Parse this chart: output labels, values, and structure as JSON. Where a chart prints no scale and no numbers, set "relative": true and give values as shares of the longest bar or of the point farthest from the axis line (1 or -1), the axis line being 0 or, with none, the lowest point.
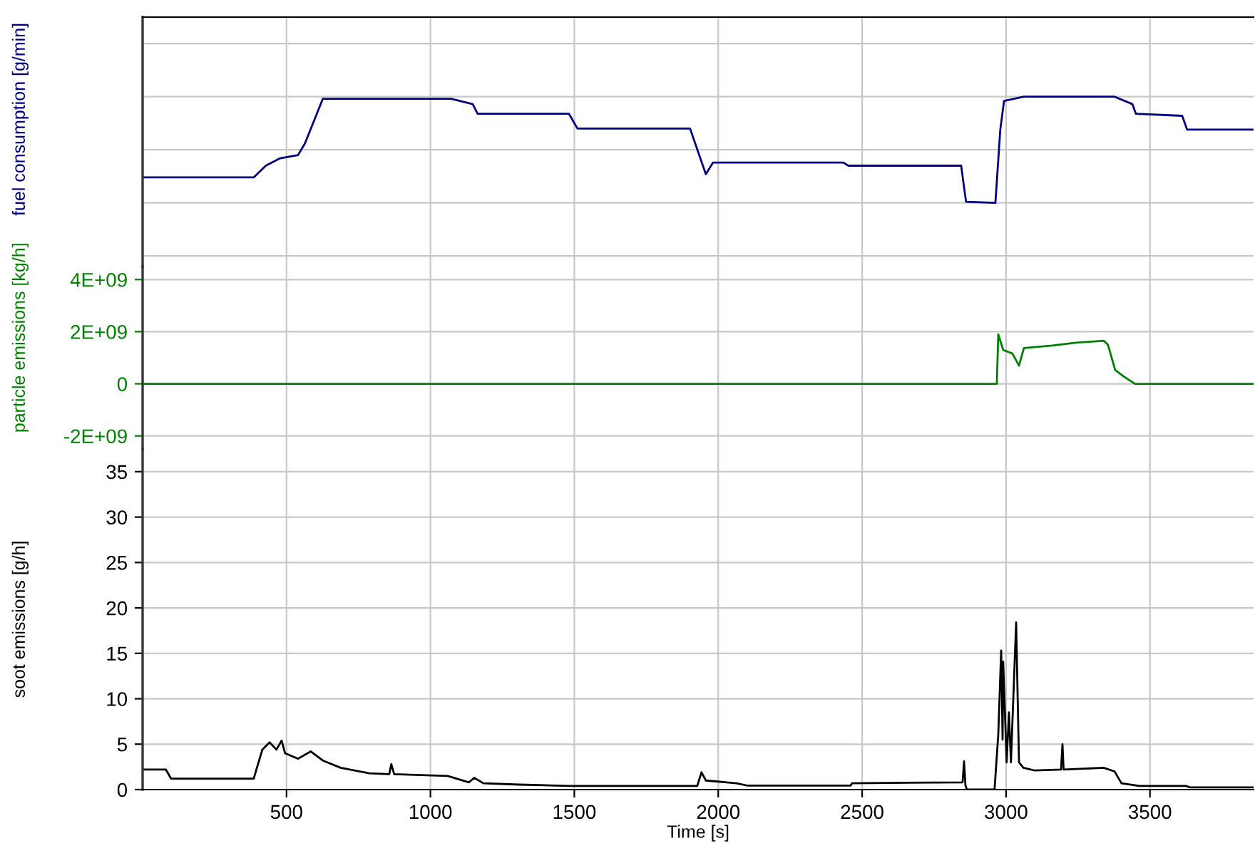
{
  "chart_data": [
    {
      "type": "line",
      "ylabel": "fuel consumption [g/min]",
      "relative": true,
      "color": "#000080",
      "grid": true,
      "tick_labels": false,
      "xlim": [
        0,
        3860
      ],
      "xticks": [
        500,
        1000,
        1500,
        2000,
        2500,
        3000,
        3500
      ],
      "x": [
        0,
        386,
        428,
        478,
        540,
        564,
        626,
        1072,
        1147,
        1164,
        1481,
        1511,
        1902,
        1957,
        1982,
        2435,
        2452,
        2844,
        2861,
        2963,
        2980,
        2993,
        3062,
        3377,
        3439,
        3451,
        3612,
        3629,
        3860
      ],
      "values": [
        0.24,
        0.24,
        0.35,
        0.42,
        0.45,
        0.56,
        0.98,
        0.98,
        0.93,
        0.84,
        0.84,
        0.7,
        0.7,
        0.27,
        0.38,
        0.38,
        0.35,
        0.35,
        0.01,
        0.0,
        0.69,
        0.96,
        1.0,
        1.0,
        0.93,
        0.84,
        0.82,
        0.69,
        0.69
      ]
    },
    {
      "type": "line",
      "ylabel": "particle emissions [kg/h]",
      "color": "#008000",
      "grid": true,
      "tick_labels": "y",
      "xlim": [
        0,
        3860
      ],
      "xticks": [
        500,
        1000,
        1500,
        2000,
        2500,
        3000,
        3500
      ],
      "ylim": [
        -2500000000,
        4500000000
      ],
      "yticks": [
        {
          "value": -2000000000,
          "label": "-2E+09"
        },
        0,
        {
          "value": 2000000000,
          "label": "2E+09"
        },
        {
          "value": 4000000000,
          "label": "4E+09"
        }
      ],
      "x": [
        0,
        2968,
        2973,
        2990,
        3022,
        3045,
        3062,
        3161,
        3243,
        3340,
        3354,
        3379,
        3409,
        3448,
        3860
      ],
      "values": [
        0,
        0,
        1900000000,
        1300000000,
        1160000000,
        700000000,
        1370000000,
        1470000000,
        1580000000,
        1650000000,
        1500000000,
        530000000,
        280000000,
        0,
        0
      ]
    },
    {
      "type": "line",
      "ylabel": "soot emissions [g/h]",
      "xlabel": "Time [s]",
      "color": "#000000",
      "grid": true,
      "xlim": [
        0,
        3860
      ],
      "xticks": [
        500,
        1000,
        1500,
        2000,
        2500,
        3000,
        3500
      ],
      "ylim": [
        0,
        37.5
      ],
      "yticks": [
        0,
        5,
        10,
        15,
        20,
        25,
        30,
        35
      ],
      "x": [
        0,
        81,
        99,
        386,
        416,
        441,
        465,
        483,
        495,
        540,
        584,
        626,
        688,
        787,
        857,
        864,
        874,
        1060,
        1134,
        1152,
        1184,
        1308,
        1481,
        1927,
        1942,
        1957,
        2063,
        2100,
        2460,
        2465,
        2849,
        2854,
        2859,
        2864,
        2960,
        2973,
        2983,
        2988,
        2990,
        3002,
        3010,
        3017,
        3035,
        3045,
        3060,
        3100,
        3191,
        3196,
        3200,
        3339,
        3377,
        3401,
        3463,
        3624,
        3640,
        3860
      ],
      "values": [
        2.2,
        2.2,
        1.2,
        1.2,
        4.4,
        5.2,
        4.4,
        5.4,
        4.0,
        3.4,
        4.2,
        3.2,
        2.4,
        1.8,
        1.7,
        2.8,
        1.7,
        1.5,
        0.8,
        1.3,
        0.7,
        0.55,
        0.4,
        0.4,
        1.9,
        1.0,
        0.7,
        0.45,
        0.45,
        0.7,
        0.8,
        3.1,
        0.45,
        0,
        0,
        6.1,
        15.3,
        5.5,
        14.1,
        3.0,
        8.5,
        3.0,
        18.4,
        3.0,
        2.4,
        2.1,
        2.2,
        5.0,
        2.2,
        2.4,
        2.0,
        0.7,
        0.4,
        0.4,
        0.25,
        0.25
      ]
    }
  ]
}
